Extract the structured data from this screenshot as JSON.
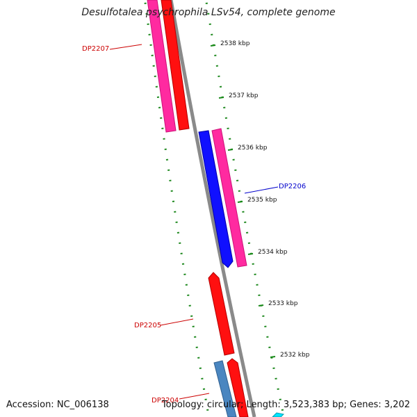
{
  "title": "Desulfotalea psychrophila LSv54, complete genome",
  "footer": {
    "accession": "Accession: NC_006138",
    "summary": "Topology: circular; Length: 3,523,383 bp; Genes: 3,202"
  },
  "colors": {
    "forward_gene": "#ff1493",
    "cds_red": "#ff0000",
    "reverse_blue": "#0000ff",
    "steel_blue": "#4682b4",
    "cyan": "#00ffff",
    "backbone": "#808080",
    "tick": "#228b22",
    "label_red": "#cc0000",
    "label_blue": "#0000cc"
  },
  "scale_ticks": [
    {
      "kbp": 2538,
      "label": "2538 kbp"
    },
    {
      "kbp": 2537,
      "label": "2537 kbp"
    },
    {
      "kbp": 2536,
      "label": "2536 kbp"
    },
    {
      "kbp": 2535,
      "label": "2535 kbp"
    },
    {
      "kbp": 2534,
      "label": "2534 kbp"
    },
    {
      "kbp": 2533,
      "label": "2533 kbp"
    },
    {
      "kbp": 2532,
      "label": "2532 kbp"
    }
  ],
  "gene_labels": [
    {
      "name": "DP2207",
      "color": "red"
    },
    {
      "name": "DP2206",
      "color": "blue"
    },
    {
      "name": "DP2205",
      "color": "red"
    },
    {
      "name": "DP2204",
      "color": "red"
    }
  ]
}
